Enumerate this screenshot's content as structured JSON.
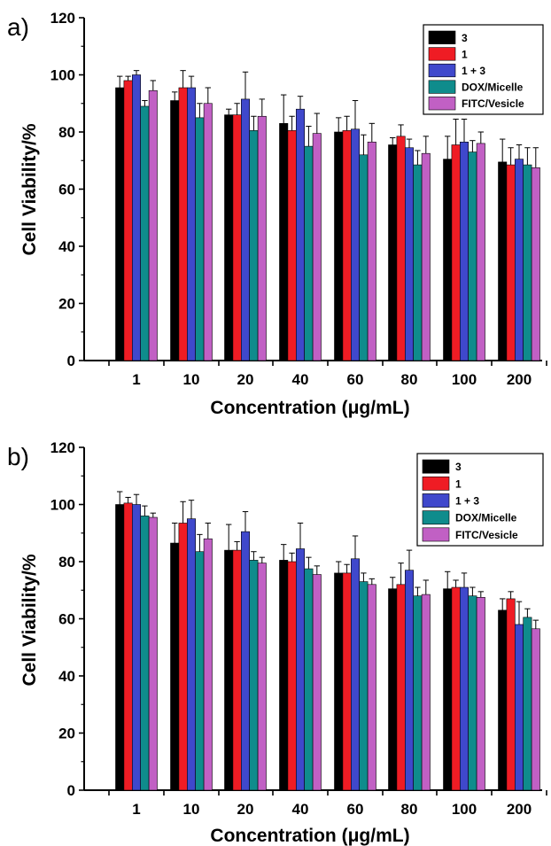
{
  "chart_data": [
    {
      "panel": "a)",
      "type": "bar",
      "categories": [
        "1",
        "10",
        "20",
        "40",
        "60",
        "80",
        "100",
        "200"
      ],
      "xlabel": "Concentration (μg/mL)",
      "ylabel": "Cell Viability/%",
      "ylim": [
        0,
        120
      ],
      "yticks": [
        0,
        20,
        40,
        60,
        80,
        100,
        120
      ],
      "legend_position": "top-right",
      "error_bars": true,
      "series": [
        {
          "name": "3",
          "color": "#000000",
          "values": [
            95.5,
            91,
            86,
            83,
            80,
            75.5,
            70.5,
            69.5
          ],
          "errors": [
            4,
            3,
            2,
            10,
            5,
            2.5,
            8,
            8
          ]
        },
        {
          "name": "1",
          "color": "#ef1c24",
          "values": [
            98,
            95.5,
            86,
            80.5,
            80.5,
            78.5,
            75.5,
            68.5
          ],
          "errors": [
            1.5,
            6,
            4,
            5,
            5,
            4,
            9,
            6
          ]
        },
        {
          "name": "1 + 3",
          "color": "#3f48cc",
          "values": [
            100,
            95.5,
            91.5,
            88,
            81,
            74.5,
            76.5,
            70.5
          ],
          "errors": [
            1.5,
            4,
            9.5,
            4.5,
            10,
            3,
            8,
            5
          ]
        },
        {
          "name": "DOX/Micelle",
          "color": "#0f8c8c",
          "values": [
            89,
            85,
            80.5,
            75,
            72,
            68.5,
            73,
            68.5
          ],
          "errors": [
            2,
            5,
            5,
            7,
            7,
            5,
            4,
            6
          ]
        },
        {
          "name": "FITC/Vesicle",
          "color": "#c160c4",
          "values": [
            94.5,
            90,
            85.5,
            79.5,
            76.5,
            72.5,
            76,
            67.5
          ],
          "errors": [
            3.5,
            5.5,
            6,
            7,
            6.5,
            6,
            4,
            7
          ]
        }
      ]
    },
    {
      "panel": "b)",
      "type": "bar",
      "categories": [
        "1",
        "10",
        "20",
        "40",
        "60",
        "80",
        "100",
        "200"
      ],
      "xlabel": "Concentration (μg/mL)",
      "ylabel": "Cell Viability/%",
      "ylim": [
        0,
        120
      ],
      "yticks": [
        0,
        20,
        40,
        60,
        80,
        100,
        120
      ],
      "legend_position": "top-right",
      "error_bars": true,
      "series": [
        {
          "name": "3",
          "color": "#000000",
          "values": [
            100,
            86.5,
            84,
            80.5,
            76,
            70.5,
            70.5,
            63
          ],
          "errors": [
            4.5,
            7,
            9,
            5.5,
            4,
            4,
            6,
            4
          ]
        },
        {
          "name": "1",
          "color": "#ef1c24",
          "values": [
            100.5,
            93.5,
            84,
            80,
            76,
            72,
            71,
            67
          ],
          "errors": [
            2,
            7.5,
            3,
            3,
            3,
            7.5,
            2.5,
            2.5
          ]
        },
        {
          "name": "1 + 3",
          "color": "#3f48cc",
          "values": [
            100,
            95,
            90.5,
            84.5,
            81,
            77,
            71,
            58
          ],
          "errors": [
            3.5,
            6.5,
            7,
            9,
            8,
            7,
            5,
            8
          ]
        },
        {
          "name": "DOX/Micelle",
          "color": "#0f8c8c",
          "values": [
            96,
            83.5,
            80.5,
            77.5,
            73,
            68,
            68,
            60.5
          ],
          "errors": [
            3.5,
            6,
            3,
            4,
            3,
            3,
            3,
            3
          ]
        },
        {
          "name": "FITC/Vesicle",
          "color": "#c160c4",
          "values": [
            95.5,
            88,
            79.5,
            75.5,
            72,
            68.5,
            67.5,
            56.5
          ],
          "errors": [
            1.5,
            5.5,
            2,
            3,
            2,
            5,
            2,
            3
          ]
        }
      ]
    }
  ]
}
